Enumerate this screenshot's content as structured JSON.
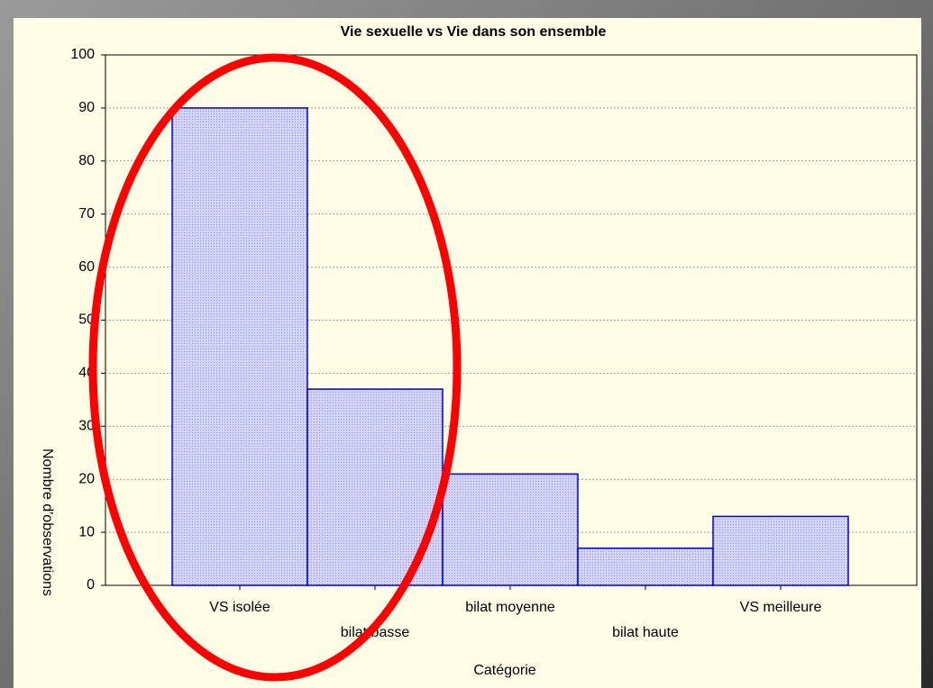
{
  "chart_data": {
    "type": "bar",
    "title": "Vie sexuelle vs Vie dans son ensemble",
    "x_label": "Catégorie",
    "y_label": "Nombre d'observations",
    "categories": [
      "VS isolée",
      "bilat basse",
      "bilat moyenne",
      "bilat haute",
      "VS meilleure"
    ],
    "values": [
      90,
      37,
      21,
      7,
      13
    ],
    "color": "#c4c4f4",
    "ylim": [
      0,
      100
    ],
    "yticks": [
      0,
      10,
      20,
      30,
      40,
      50,
      60,
      70,
      80,
      90,
      100
    ],
    "grid": true
  }
}
